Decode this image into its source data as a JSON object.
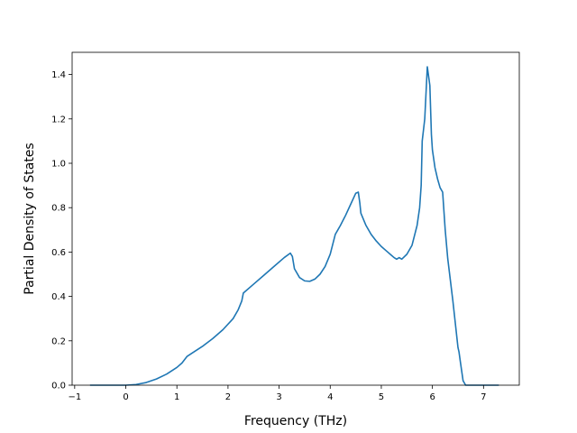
{
  "chart_data": {
    "type": "line",
    "title": "",
    "xlabel": "Frequency (THz)",
    "ylabel": "Partial Density of States",
    "xlim": [
      -1.05,
      7.7
    ],
    "ylim": [
      0.0,
      1.5
    ],
    "x_ticks": [
      -1,
      0,
      1,
      2,
      3,
      4,
      5,
      6,
      7
    ],
    "x_tick_labels": [
      "−1",
      "0",
      "1",
      "2",
      "3",
      "4",
      "5",
      "6",
      "7"
    ],
    "y_ticks": [
      0.0,
      0.2,
      0.4,
      0.6,
      0.8,
      1.0,
      1.2,
      1.4
    ],
    "y_tick_labels": [
      "0.0",
      "0.2",
      "0.4",
      "0.6",
      "0.8",
      "1.0",
      "1.2",
      "1.4"
    ],
    "grid": false,
    "legend": "none",
    "series": [
      {
        "color": "#1f77b4",
        "x": [
          -0.7,
          -0.3,
          0.0,
          0.2,
          0.4,
          0.6,
          0.8,
          1.0,
          1.1,
          1.2,
          1.3,
          1.5,
          1.7,
          1.9,
          2.1,
          2.2,
          2.27,
          2.3,
          2.5,
          2.7,
          2.9,
          3.1,
          3.22,
          3.26,
          3.3,
          3.4,
          3.5,
          3.6,
          3.7,
          3.8,
          3.9,
          4.0,
          4.1,
          4.15,
          4.2,
          4.3,
          4.4,
          4.5,
          4.55,
          4.58,
          4.6,
          4.7,
          4.8,
          4.9,
          5.0,
          5.1,
          5.2,
          5.25,
          5.3,
          5.35,
          5.4,
          5.5,
          5.6,
          5.7,
          5.75,
          5.78,
          5.8,
          5.85,
          5.9,
          5.95,
          5.98,
          6.0,
          6.05,
          6.1,
          6.15,
          6.2,
          6.25,
          6.3,
          6.4,
          6.5,
          6.52,
          6.55,
          6.6,
          6.65,
          6.7,
          6.8,
          7.0,
          7.3
        ],
        "y": [
          0.0,
          0.0,
          0.0,
          0.003,
          0.012,
          0.028,
          0.05,
          0.08,
          0.1,
          0.13,
          0.145,
          0.175,
          0.21,
          0.25,
          0.3,
          0.34,
          0.38,
          0.415,
          0.455,
          0.495,
          0.535,
          0.575,
          0.595,
          0.58,
          0.525,
          0.485,
          0.47,
          0.468,
          0.478,
          0.5,
          0.535,
          0.59,
          0.68,
          0.7,
          0.72,
          0.765,
          0.815,
          0.865,
          0.87,
          0.82,
          0.775,
          0.72,
          0.68,
          0.65,
          0.625,
          0.605,
          0.585,
          0.575,
          0.568,
          0.575,
          0.568,
          0.59,
          0.63,
          0.72,
          0.8,
          0.9,
          1.1,
          1.2,
          1.435,
          1.35,
          1.13,
          1.06,
          0.98,
          0.93,
          0.89,
          0.87,
          0.7,
          0.57,
          0.38,
          0.17,
          0.15,
          0.1,
          0.02,
          0.0,
          0.0,
          0.0,
          0.0,
          0.0
        ]
      }
    ]
  }
}
